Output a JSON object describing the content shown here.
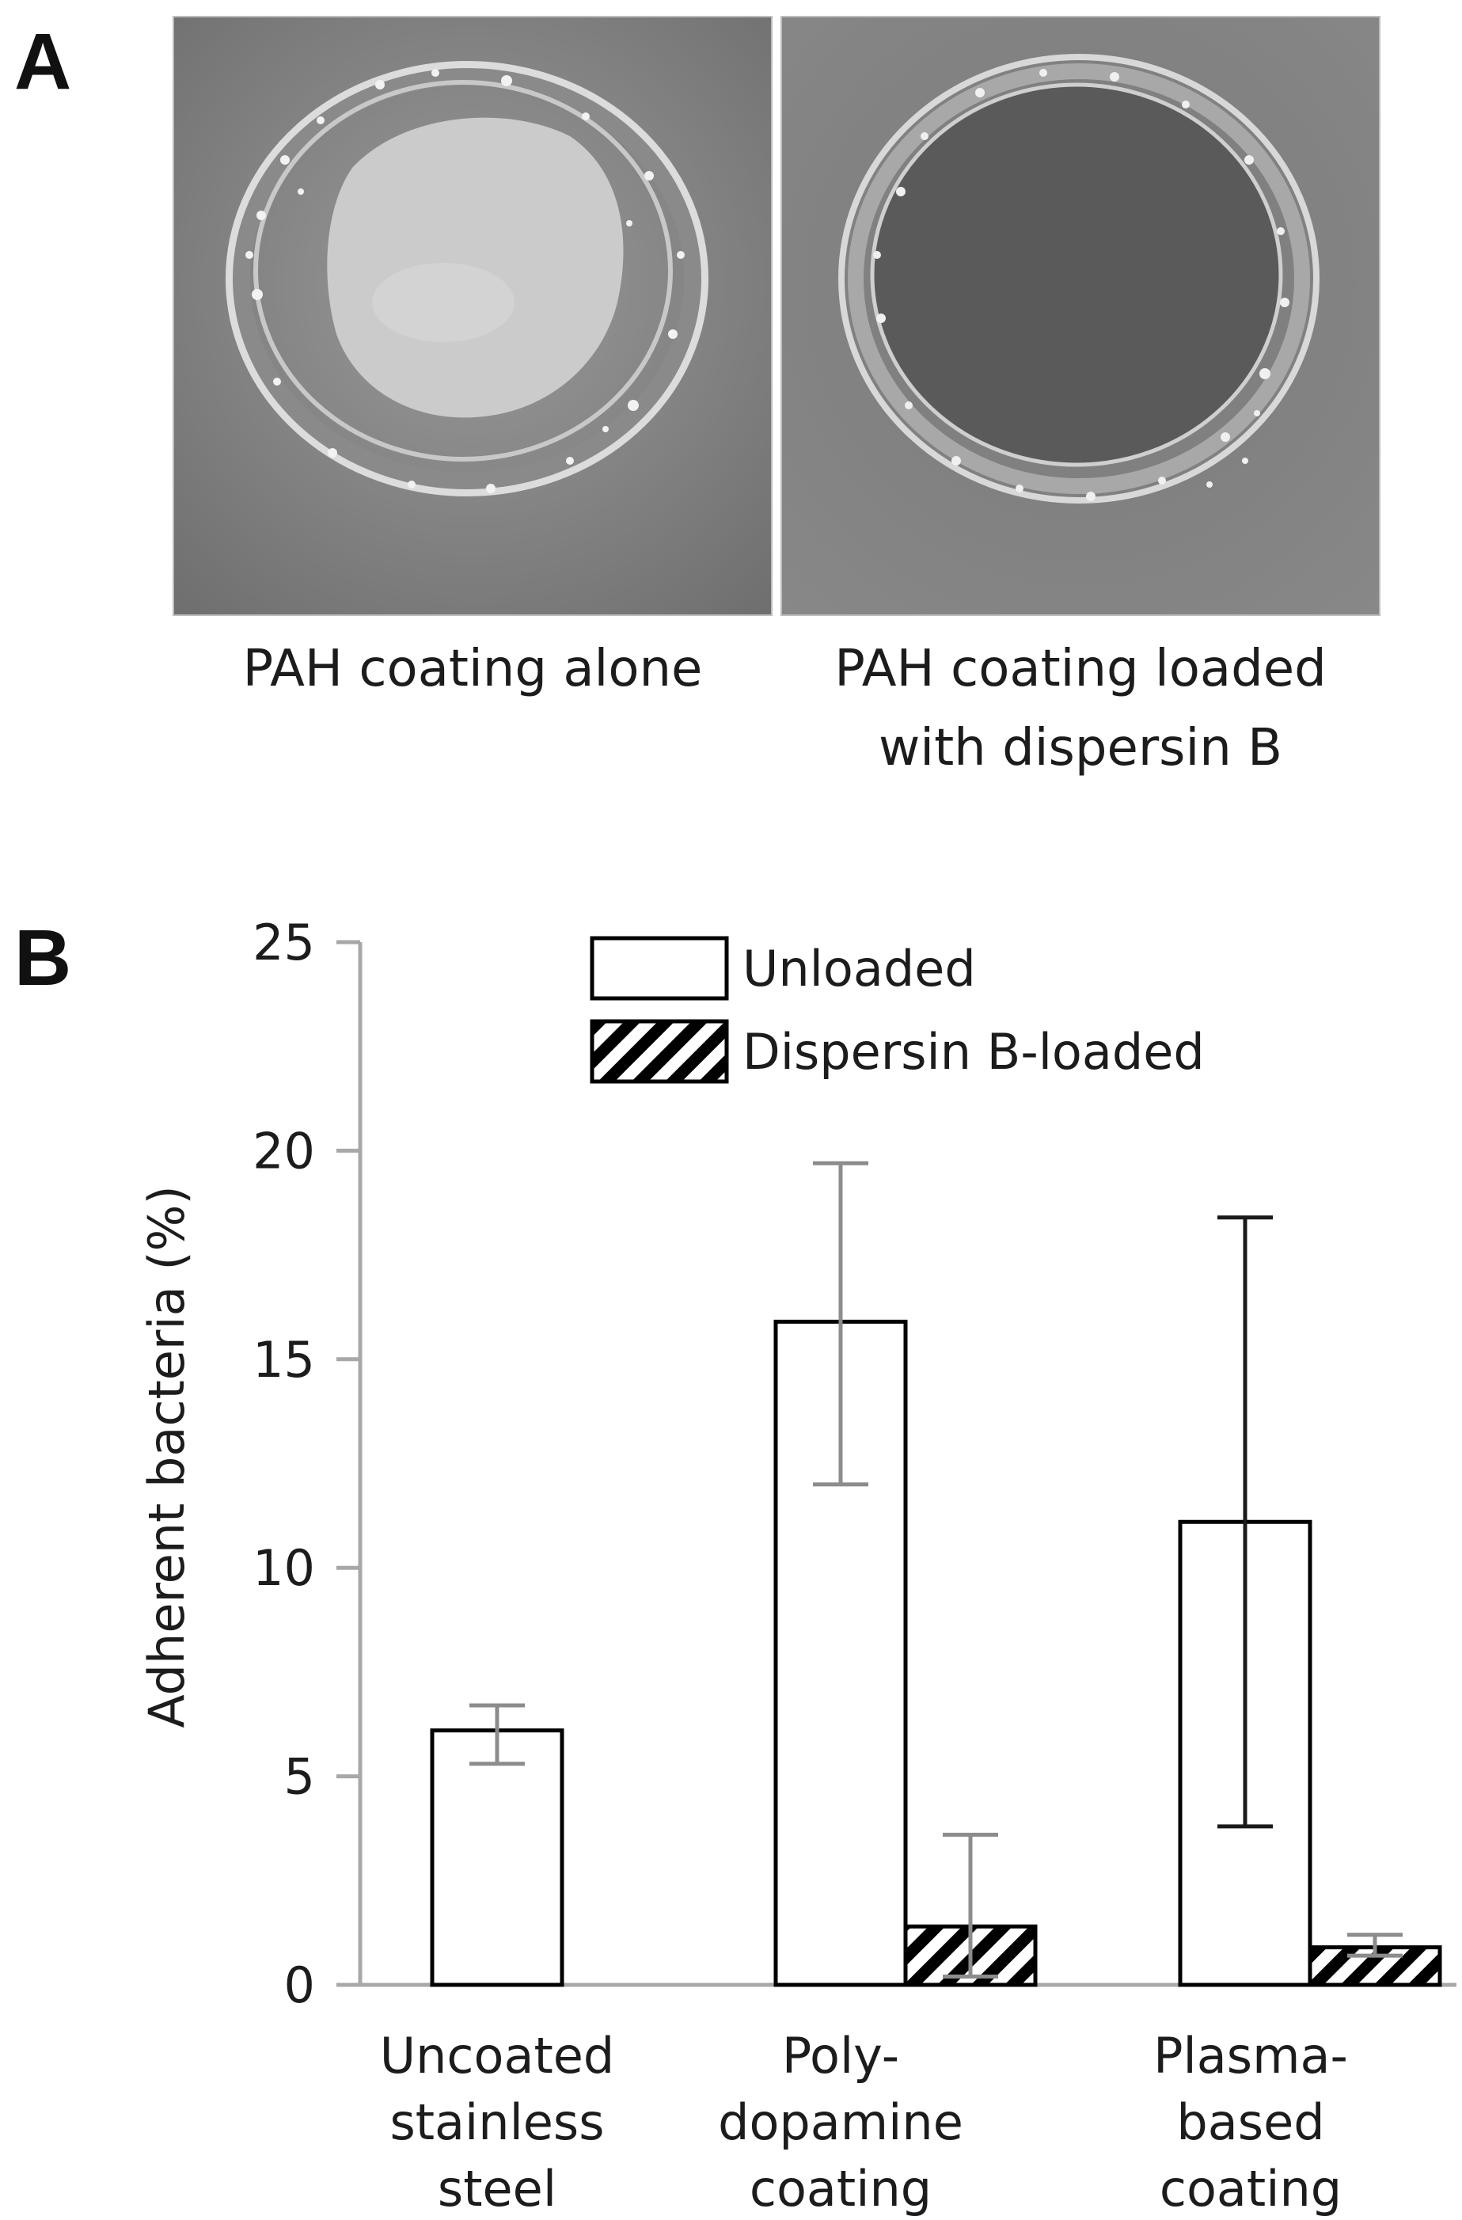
{
  "panel_a": {
    "letter": "A",
    "images": [
      {
        "caption": "PAH coating alone"
      },
      {
        "caption": "PAH coating loaded\nwith dispersin B"
      }
    ]
  },
  "panel_b": {
    "letter": "B"
  },
  "chart_data": {
    "type": "bar",
    "categories": [
      "Uncoated\nstainless\nsteel",
      "Poly-\ndopamine\ncoating",
      "Plasma-\nbased\ncoating"
    ],
    "series": [
      {
        "name": "Unloaded",
        "values": [
          6.1,
          15.9,
          11.1
        ],
        "error_low": [
          5.3,
          12.0,
          3.8
        ],
        "error_high": [
          6.7,
          19.7,
          18.4
        ],
        "fill": "#ffffff"
      },
      {
        "name": "Dispersin B-loaded",
        "values": [
          null,
          1.4,
          0.9
        ],
        "error_low": [
          null,
          0.2,
          0.7
        ],
        "error_high": [
          null,
          3.6,
          1.2
        ],
        "fill": "hatched"
      }
    ],
    "ylabel": "Adherent bacteria (%)",
    "xlabel": "",
    "ylim": [
      0,
      25
    ],
    "yticks": [
      0,
      5,
      10,
      15,
      20,
      25
    ],
    "grid": false,
    "legend_position": "top"
  }
}
